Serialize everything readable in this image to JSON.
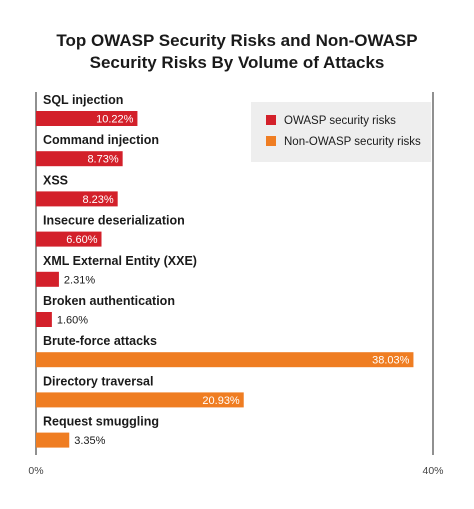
{
  "chart_data": {
    "type": "bar",
    "orientation": "horizontal",
    "title_lines": [
      "Top OWASP Security Risks and Non-OWASP",
      "Security Risks By Volume of Attacks"
    ],
    "categories": [
      "SQL injection",
      "Command injection",
      "XSS",
      "Insecure deserialization",
      "XML External Entity (XXE)",
      "Broken authentication",
      "Brute-force attacks",
      "Directory traversal",
      "Request smuggling"
    ],
    "values": [
      10.22,
      8.73,
      8.23,
      6.6,
      2.31,
      1.6,
      38.03,
      20.93,
      3.35
    ],
    "value_labels": [
      "10.22%",
      "8.73%",
      "8.23%",
      "6.60%",
      "2.31%",
      "1.60%",
      "38.03%",
      "20.93%",
      "3.35%"
    ],
    "series_assignment": [
      0,
      0,
      0,
      0,
      0,
      0,
      1,
      1,
      1
    ],
    "series": [
      {
        "name": "OWASP security risks",
        "color": "#d3202a"
      },
      {
        "name": "Non-OWASP security risks",
        "color": "#ef7d22"
      }
    ],
    "xlim": [
      0,
      40
    ],
    "x_ticks": [
      "0%",
      "40%"
    ],
    "legend_position": "top-right",
    "grid": false
  }
}
